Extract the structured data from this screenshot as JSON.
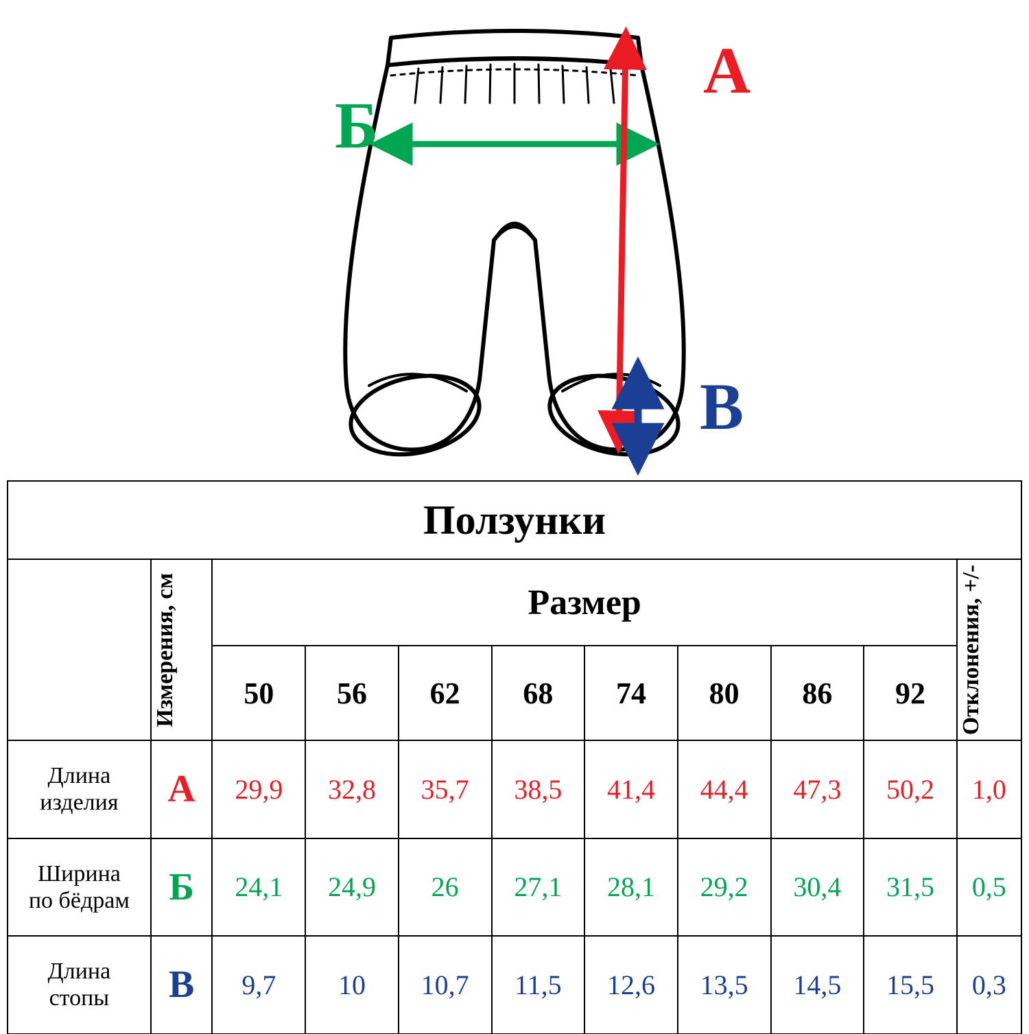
{
  "colors": {
    "A": "#ec1c24",
    "B": "#00a651",
    "V": "#1b3f94",
    "outline": "#000000",
    "bg": "#ffffff"
  },
  "diagram": {
    "labels": {
      "A": "А",
      "B": "Б",
      "V": "В"
    },
    "label_fontsize": 80,
    "arrow_width": 8
  },
  "table": {
    "title": "Ползунки",
    "size_header": "Размер",
    "measurements_header": "Измерения, см",
    "deviation_header": "Отклонения, +/-",
    "sizes": [
      "50",
      "56",
      "62",
      "68",
      "74",
      "80",
      "86",
      "92"
    ],
    "rows": [
      {
        "name": "Длина\nизделия",
        "letter": "А",
        "colorKey": "A",
        "values": [
          "29,9",
          "32,8",
          "35,7",
          "38,5",
          "41,4",
          "44,4",
          "47,3",
          "50,2"
        ],
        "dev": "1,0"
      },
      {
        "name": "Ширина\nпо бёдрам",
        "letter": "Б",
        "colorKey": "B",
        "values": [
          "24,1",
          "24,9",
          "26",
          "27,1",
          "28,1",
          "29,2",
          "30,4",
          "31,5"
        ],
        "dev": "0,5"
      },
      {
        "name": "Длина\nстопы",
        "letter": "В",
        "colorKey": "V",
        "values": [
          "9,7",
          "10",
          "10,7",
          "11,5",
          "12,6",
          "13,5",
          "14,5",
          "15,5"
        ],
        "dev": "0,3"
      }
    ]
  }
}
